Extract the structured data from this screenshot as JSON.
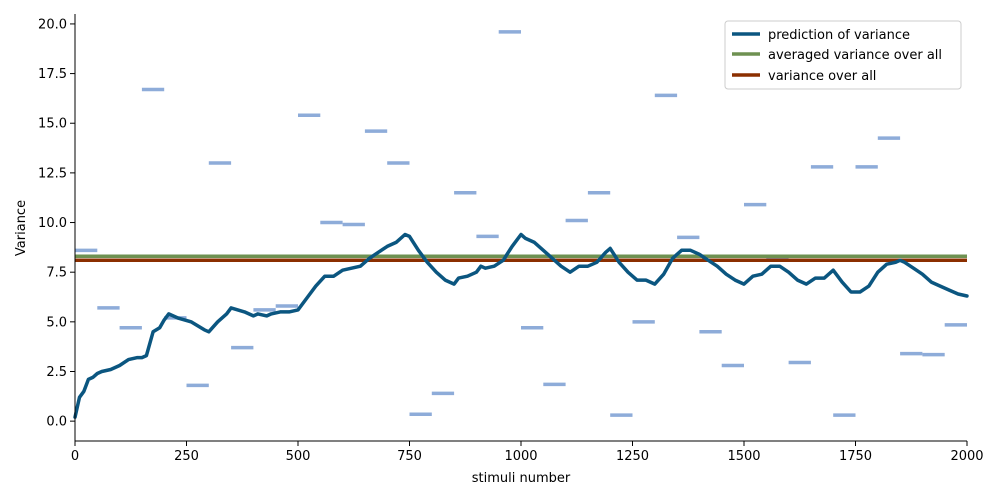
{
  "chart_data": {
    "type": "line",
    "xlabel": "stimuli number",
    "ylabel": "Variance",
    "xlim": [
      0,
      2000
    ],
    "ylim": [
      -1.0,
      20.5
    ],
    "x_ticks": [
      0,
      250,
      500,
      750,
      1000,
      1250,
      1500,
      1750,
      2000
    ],
    "y_ticks": [
      0.0,
      2.5,
      5.0,
      7.5,
      10.0,
      12.5,
      15.0,
      17.5,
      20.0
    ],
    "x_tick_labels": [
      "0",
      "250",
      "500",
      "750",
      "1000",
      "1250",
      "1500",
      "1750",
      "2000"
    ],
    "y_tick_labels": [
      "0.0",
      "2.5",
      "5.0",
      "7.5",
      "10.0",
      "12.5",
      "15.0",
      "17.5",
      "20.0"
    ],
    "grid": false,
    "legend_position": "top-right",
    "colors": {
      "prediction": "#0b5680",
      "averaged": "#6e9151",
      "overall": "#8b2f00",
      "blocks": "#8eacd9"
    },
    "series": [
      {
        "name": "prediction of variance",
        "kind": "line",
        "x": [
          0,
          10,
          20,
          30,
          40,
          50,
          60,
          80,
          100,
          120,
          140,
          150,
          160,
          175,
          190,
          200,
          210,
          230,
          260,
          290,
          300,
          320,
          340,
          350,
          380,
          400,
          410,
          430,
          440,
          460,
          480,
          500,
          520,
          540,
          560,
          580,
          600,
          620,
          640,
          660,
          680,
          700,
          720,
          740,
          750,
          770,
          790,
          810,
          830,
          850,
          860,
          880,
          900,
          910,
          920,
          940,
          960,
          980,
          1000,
          1010,
          1030,
          1060,
          1090,
          1110,
          1130,
          1150,
          1170,
          1190,
          1200,
          1220,
          1240,
          1260,
          1280,
          1300,
          1320,
          1340,
          1360,
          1380,
          1400,
          1420,
          1440,
          1460,
          1480,
          1500,
          1520,
          1540,
          1560,
          1580,
          1600,
          1620,
          1640,
          1660,
          1680,
          1700,
          1720,
          1740,
          1760,
          1780,
          1800,
          1820,
          1840,
          1850,
          1860,
          1880,
          1900,
          1920,
          1940,
          1960,
          1980,
          2000
        ],
        "y": [
          0.2,
          1.2,
          1.5,
          2.1,
          2.2,
          2.4,
          2.5,
          2.6,
          2.8,
          3.1,
          3.2,
          3.2,
          3.3,
          4.5,
          4.7,
          5.1,
          5.4,
          5.2,
          5.0,
          4.6,
          4.5,
          5.0,
          5.4,
          5.7,
          5.5,
          5.3,
          5.4,
          5.3,
          5.4,
          5.5,
          5.5,
          5.6,
          6.2,
          6.8,
          7.3,
          7.3,
          7.6,
          7.7,
          7.8,
          8.2,
          8.5,
          8.8,
          9.0,
          9.4,
          9.3,
          8.6,
          8.0,
          7.5,
          7.1,
          6.9,
          7.2,
          7.3,
          7.5,
          7.8,
          7.7,
          7.8,
          8.1,
          8.8,
          9.4,
          9.2,
          9.0,
          8.4,
          7.8,
          7.5,
          7.8,
          7.8,
          8.0,
          8.5,
          8.7,
          8.0,
          7.5,
          7.1,
          7.1,
          6.9,
          7.4,
          8.2,
          8.6,
          8.6,
          8.4,
          8.1,
          7.8,
          7.4,
          7.1,
          6.9,
          7.3,
          7.4,
          7.8,
          7.8,
          7.5,
          7.1,
          6.9,
          7.2,
          7.2,
          7.6,
          7.0,
          6.5,
          6.5,
          6.8,
          7.5,
          7.9,
          8.0,
          8.1,
          8.0,
          7.7,
          7.4,
          7.0,
          6.8,
          6.6,
          6.4,
          6.3
        ]
      },
      {
        "name": "averaged variance over all",
        "kind": "hline",
        "value": 8.3
      },
      {
        "name": "variance over all",
        "kind": "hline",
        "value": 8.1
      },
      {
        "name": "",
        "kind": "blocks",
        "block_width": 50,
        "x_start": [
          0,
          50,
          100,
          150,
          200,
          250,
          300,
          350,
          400,
          450,
          500,
          550,
          600,
          650,
          700,
          750,
          800,
          850,
          900,
          950,
          1000,
          1050,
          1100,
          1150,
          1200,
          1250,
          1300,
          1350,
          1400,
          1450,
          1500,
          1550,
          1600,
          1650,
          1700,
          1750,
          1800,
          1850,
          1900,
          1950
        ],
        "values": [
          8.6,
          5.7,
          4.7,
          16.7,
          5.2,
          1.8,
          13.0,
          3.7,
          5.6,
          5.8,
          15.4,
          10.0,
          9.9,
          14.6,
          13.0,
          0.35,
          1.4,
          11.5,
          9.3,
          19.6,
          4.7,
          1.85,
          10.1,
          11.5,
          0.3,
          5.0,
          16.4,
          9.25,
          4.5,
          2.8,
          10.9,
          8.2,
          2.95,
          12.8,
          0.3,
          12.8,
          14.25,
          3.4,
          3.35,
          4.85
        ]
      }
    ]
  }
}
